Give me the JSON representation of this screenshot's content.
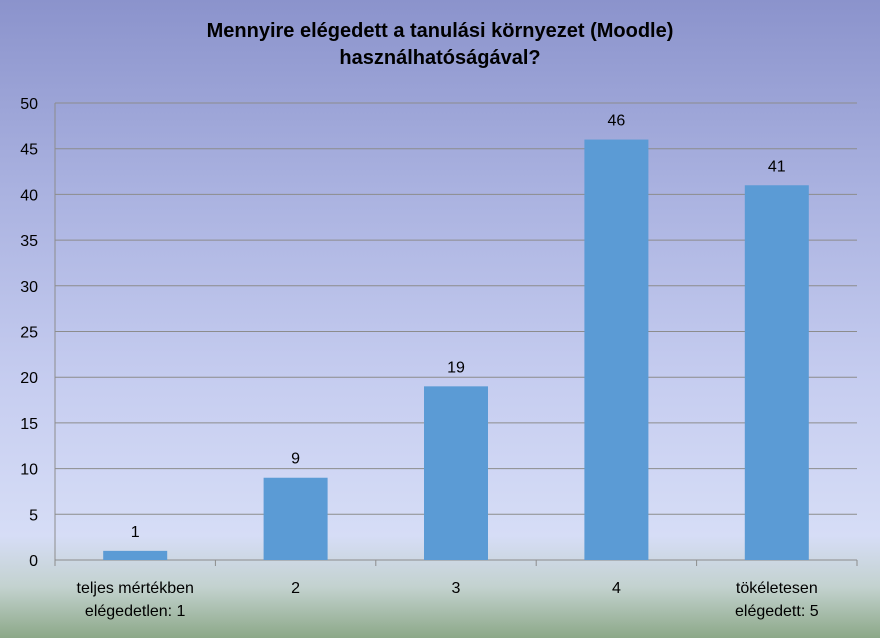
{
  "chart_data": {
    "type": "bar",
    "title": "Mennyire elégedett a tanulási környezet (Moodle) használhatóságával?",
    "title_lines": [
      "Mennyire elégedett a tanulási környezet (Moodle)",
      "használhatóságával?"
    ],
    "categories": [
      [
        "teljes mértékben",
        "elégedetlen: 1"
      ],
      [
        "2"
      ],
      [
        "3"
      ],
      [
        "4"
      ],
      [
        "tökéletesen",
        "elégedett: 5"
      ]
    ],
    "values": [
      1,
      9,
      19,
      46,
      41
    ],
    "xlabel": "",
    "ylabel": "",
    "ylim": [
      0,
      50
    ],
    "yticks": [
      0,
      5,
      10,
      15,
      20,
      25,
      30,
      35,
      40,
      45,
      50
    ],
    "grid": true,
    "legend": "none",
    "bar_color": "#5b9bd5",
    "grid_color": "#8c8c8c"
  }
}
